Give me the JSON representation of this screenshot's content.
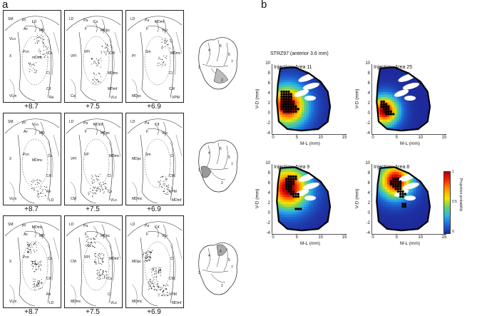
{
  "panels": {
    "a": "a",
    "b": "b"
  },
  "panel_a": {
    "levels": [
      "+8.7",
      "+7.5",
      "+6.9"
    ],
    "rows": [
      {
        "sections": [
          {
            "labels": [
              "SM",
              "Pf",
              "Av",
              "MD",
              "Pcn",
              "X",
              "VLm",
              "Cs",
              "Cl",
              "Cif",
              "Re",
              "LD",
              "mDmc",
              "VLo"
            ]
          },
          {
            "labels": [
              "LD",
              "Pa",
              "F",
              "MDpc",
              "VPi",
              "VPI",
              "Csi",
              "CM",
              "MDmc",
              "MDmf",
              "VLo",
              "Cs"
            ]
          },
          {
            "labels": [
              "LD",
              "Pa",
              "F",
              "VLc",
              "Sm",
              "Pf",
              "MDpc",
              "MDmc",
              "Cl",
              "CM",
              "VPM",
              "MDmf"
            ]
          }
        ]
      },
      {
        "sections": [
          {
            "labels": [
              "SM",
              "Pf",
              "Av",
              "MD",
              "Pcn",
              "X",
              "VLm",
              "Cs",
              "Cif",
              "Re",
              "LD",
              "VLo",
              "MDmc"
            ]
          },
          {
            "labels": [
              "LD",
              "Pa",
              "F",
              "MDpc",
              "VP",
              "VPI",
              "CM",
              "MDmc",
              "Cl",
              "Cs",
              "VLo",
              "MDmf"
            ]
          },
          {
            "labels": [
              "LD",
              "Pa",
              "F",
              "VLc",
              "Sm",
              "MDpc",
              "MDmc",
              "Cl",
              "CM",
              "VPM",
              "MDmf",
              "Cif"
            ]
          }
        ]
      },
      {
        "sections": [
          {
            "labels": [
              "SM",
              "Pf",
              "Av",
              "MD",
              "Pcn",
              "X",
              "VLm",
              "Cs",
              "Cif",
              "Re",
              "LD",
              "MDmc",
              "Cl"
            ]
          },
          {
            "labels": [
              "LD",
              "Pa",
              "F",
              "MDpc",
              "VPI",
              "CM",
              "MDmc",
              "MDmf",
              "Cs",
              "Cl",
              "VLo"
            ]
          },
          {
            "labels": [
              "LD",
              "Pa",
              "F",
              "VLc",
              "Sm",
              "MDpc",
              "MDmc",
              "Cl",
              "CM",
              "VPM",
              "MDmf",
              "Cif"
            ]
          }
        ]
      }
    ],
    "brain_numbers": [
      [
        "4",
        "6",
        "5",
        "7",
        "3",
        "2"
      ],
      [
        "4",
        "6",
        "5",
        "7",
        "3",
        "2"
      ],
      [
        "4",
        "6",
        "5",
        "7",
        "3",
        "2"
      ]
    ]
  },
  "panel_b": {
    "case": "STRZ97 (anterior 3.6 mm)",
    "xlabel": "M-L (mm)",
    "ylabel": "V-D (mm)",
    "xticks": [
      "0",
      "5",
      "10",
      "15"
    ],
    "yticks": [
      "10",
      "8",
      "6",
      "4",
      "2",
      "0",
      "-2",
      "-4"
    ],
    "colorbar": {
      "label": "Projection probability",
      "ticks": [
        "1",
        "0.5",
        "0"
      ],
      "low": "#1e2a9c",
      "mid": "#6bd16b",
      "high": "#b40000"
    },
    "chart_data": [
      {
        "type": "heatmap",
        "title": "Injection: Area 11",
        "xlabel": "M-L (mm)",
        "ylabel": "V-D (mm)",
        "xlim": [
          0,
          15
        ],
        "ylim": [
          -4,
          10
        ],
        "hotspot": [
          2.8,
          1.5
        ],
        "spread": 3.0,
        "dots": [
          [
            1.8,
            4.5
          ],
          [
            2.3,
            4.5
          ],
          [
            2.8,
            4.5
          ],
          [
            3.3,
            4.5
          ],
          [
            1.8,
            4
          ],
          [
            2.3,
            4
          ],
          [
            2.8,
            4
          ],
          [
            3.3,
            4
          ],
          [
            3.8,
            4
          ],
          [
            1.8,
            3.5
          ],
          [
            2.3,
            3.5
          ],
          [
            2.8,
            3.5
          ],
          [
            3.3,
            3.5
          ],
          [
            3.8,
            3.5
          ],
          [
            1.8,
            3
          ],
          [
            2.3,
            3
          ],
          [
            2.8,
            3
          ],
          [
            3.3,
            3
          ],
          [
            3.8,
            3
          ],
          [
            1.8,
            2.5
          ],
          [
            2.3,
            2.5
          ],
          [
            2.8,
            2.5
          ],
          [
            3.3,
            2.5
          ],
          [
            3.8,
            2.5
          ],
          [
            4.3,
            2.5
          ],
          [
            1.8,
            2
          ],
          [
            2.3,
            2
          ],
          [
            2.8,
            2
          ],
          [
            3.3,
            2
          ],
          [
            3.8,
            2
          ],
          [
            4.3,
            2
          ],
          [
            1.8,
            1.5
          ],
          [
            2.3,
            1.5
          ],
          [
            2.8,
            1.5
          ],
          [
            3.3,
            1.5
          ],
          [
            3.8,
            1.5
          ],
          [
            4.3,
            1.5
          ],
          [
            4.8,
            1.5
          ],
          [
            1.8,
            1
          ],
          [
            2.3,
            1
          ],
          [
            2.8,
            1
          ],
          [
            3.3,
            1
          ],
          [
            3.8,
            1
          ],
          [
            4.3,
            1
          ],
          [
            4.8,
            1
          ],
          [
            5.3,
            1
          ],
          [
            2.3,
            0.5
          ],
          [
            2.8,
            0.5
          ],
          [
            3.3,
            0.5
          ],
          [
            3.8,
            0.5
          ],
          [
            4.3,
            0.5
          ],
          [
            4.8,
            0.5
          ]
        ]
      },
      {
        "type": "heatmap",
        "title": "Injection: Area 25",
        "xlabel": "M-L (mm)",
        "ylabel": "V-D (mm)",
        "xlim": [
          0,
          15
        ],
        "ylim": [
          -4,
          10
        ],
        "hotspot": [
          2.2,
          0.5
        ],
        "spread": 2.2,
        "dots": [
          [
            1.8,
            2.5
          ],
          [
            2.3,
            2.5
          ],
          [
            1.8,
            2
          ],
          [
            2.3,
            2
          ],
          [
            2.8,
            2
          ],
          [
            1.8,
            1.5
          ],
          [
            2.3,
            1.5
          ],
          [
            2.8,
            1.5
          ],
          [
            3.3,
            1.5
          ],
          [
            2.3,
            1
          ],
          [
            2.8,
            1
          ],
          [
            3.3,
            1
          ],
          [
            2.3,
            0.5
          ],
          [
            2.8,
            0.5
          ],
          [
            3.3,
            0.5
          ],
          [
            3.8,
            0.5
          ],
          [
            2.8,
            0
          ],
          [
            3.3,
            0
          ],
          [
            3.8,
            0
          ],
          [
            4.3,
            0
          ]
        ]
      },
      {
        "type": "heatmap",
        "title": "Injection: Area 9",
        "xlabel": "M-L (mm)",
        "ylabel": "V-D (mm)",
        "xlim": [
          0,
          15
        ],
        "ylim": [
          -4,
          10
        ],
        "hotspot": [
          3.0,
          5.0
        ],
        "spread": 3.2,
        "dots": [
          [
            3.3,
            7.5
          ],
          [
            3.8,
            7.5
          ],
          [
            4.3,
            7.5
          ],
          [
            4.8,
            7.5
          ],
          [
            2.8,
            7
          ],
          [
            3.3,
            7
          ],
          [
            3.8,
            7
          ],
          [
            4.3,
            7
          ],
          [
            4.8,
            7
          ],
          [
            2.8,
            6.5
          ],
          [
            3.3,
            6.5
          ],
          [
            3.8,
            6.5
          ],
          [
            4.3,
            6.5
          ],
          [
            2.8,
            6
          ],
          [
            3.3,
            6
          ],
          [
            3.8,
            6
          ],
          [
            4.3,
            6
          ],
          [
            2.8,
            5.5
          ],
          [
            3.3,
            5.5
          ],
          [
            3.8,
            5.5
          ],
          [
            2.8,
            5
          ],
          [
            3.3,
            5
          ],
          [
            3.8,
            5
          ],
          [
            3.3,
            4.5
          ],
          [
            3.8,
            4.5
          ],
          [
            4.3,
            4.5
          ],
          [
            3.8,
            4
          ],
          [
            4.3,
            4
          ],
          [
            4.8,
            4
          ],
          [
            5.3,
            4
          ],
          [
            4.3,
            3.5
          ],
          [
            4.8,
            3.5
          ],
          [
            5.3,
            3.5
          ],
          [
            4.8,
            1
          ],
          [
            5.3,
            1
          ],
          [
            5.8,
            1
          ]
        ]
      },
      {
        "type": "heatmap",
        "title": "Injection: Area 8",
        "xlabel": "M-L (mm)",
        "ylabel": "V-D (mm)",
        "xlim": [
          0,
          15
        ],
        "ylim": [
          -4,
          10
        ],
        "hotspot": [
          4.5,
          6.5
        ],
        "spread": 2.6,
        "dots": [
          [
            4.3,
            7
          ],
          [
            4.8,
            7
          ],
          [
            5.3,
            7
          ],
          [
            3.8,
            6.5
          ],
          [
            4.3,
            6.5
          ],
          [
            4.8,
            6.5
          ],
          [
            5.3,
            6.5
          ],
          [
            5.8,
            6.5
          ],
          [
            3.8,
            6
          ],
          [
            4.3,
            6
          ],
          [
            4.8,
            6
          ],
          [
            5.3,
            6
          ],
          [
            5.8,
            6
          ],
          [
            4.3,
            5.5
          ],
          [
            4.8,
            5.5
          ],
          [
            5.3,
            5.5
          ],
          [
            5.8,
            5.5
          ],
          [
            4.8,
            5
          ],
          [
            5.3,
            5
          ],
          [
            5.8,
            5
          ],
          [
            5.3,
            4.5
          ],
          [
            5.8,
            4.5
          ],
          [
            6.3,
            4.5
          ],
          [
            5.8,
            4
          ],
          [
            6.3,
            4
          ],
          [
            6.8,
            4
          ],
          [
            5.8,
            3.5
          ],
          [
            6.3,
            3.5
          ],
          [
            6.3,
            2
          ],
          [
            6.8,
            2
          ],
          [
            6.3,
            1.5
          ],
          [
            6.8,
            1.5
          ]
        ]
      }
    ]
  }
}
